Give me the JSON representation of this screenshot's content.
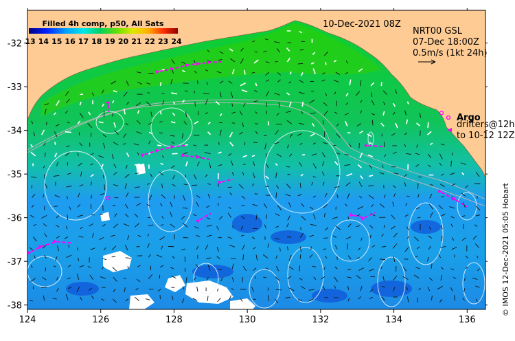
{
  "title": {
    "colorbar_label": "Filled 4h comp, p50, All Sats",
    "date": "10-Dec-2021 08Z"
  },
  "colorbar": {
    "ticks": [
      "13",
      "14",
      "15",
      "16",
      "17",
      "18",
      "19",
      "20",
      "21",
      "22",
      "23",
      "24"
    ],
    "colors": [
      "#000080",
      "#0000c8",
      "#0040ff",
      "#0090ff",
      "#00d0ff",
      "#00e8b0",
      "#00d040",
      "#50e000",
      "#c0e800",
      "#ffd000",
      "#ff7000",
      "#e00000",
      "#900000"
    ]
  },
  "info": {
    "line1": "NRT00 GSL",
    "line2": "07-Dec 18:00Z",
    "line3": "0.5m/s (1kt 24h)"
  },
  "legend": {
    "argo": "Argo",
    "drifters1": "drifters@12h",
    "drifters2": "to 10-12 12Z"
  },
  "credit": "© IMOS 12-Dec-2021 05:05 Hobart",
  "chart_data": {
    "type": "heatmap",
    "x_ticks": [
      "124",
      "126",
      "128",
      "130",
      "132",
      "134",
      "136"
    ],
    "y_ticks": [
      "-32",
      "-33",
      "-34",
      "-35",
      "-36",
      "-37",
      "-38"
    ],
    "xlim": [
      124,
      136.5
    ],
    "ylim": [
      -38.1,
      -31.25
    ],
    "land_color": "#fdcb93",
    "drifter_tracks": [
      [
        [
          127.6,
          -32.65
        ],
        [
          128.0,
          -32.58
        ],
        [
          128.4,
          -32.5
        ],
        [
          128.7,
          -32.47
        ],
        [
          129.0,
          -32.44
        ],
        [
          129.3,
          -32.43
        ]
      ],
      [
        [
          127.2,
          -34.55
        ],
        [
          127.6,
          -34.45
        ],
        [
          128.0,
          -34.37
        ],
        [
          128.3,
          -34.35
        ]
      ],
      [
        [
          128.3,
          -34.58
        ],
        [
          128.7,
          -34.62
        ],
        [
          129.0,
          -34.67
        ]
      ],
      [
        [
          124.1,
          -36.78
        ],
        [
          124.4,
          -36.65
        ],
        [
          124.8,
          -36.55
        ],
        [
          125.2,
          -36.58
        ]
      ],
      [
        [
          128.7,
          -36.05
        ],
        [
          129.0,
          -35.9
        ]
      ],
      [
        [
          129.3,
          -35.18
        ],
        [
          129.6,
          -35.12
        ]
      ],
      [
        [
          132.9,
          -35.95
        ],
        [
          133.2,
          -36.0
        ],
        [
          133.5,
          -35.88
        ]
      ],
      [
        [
          133.3,
          -34.35
        ],
        [
          133.7,
          -34.37
        ]
      ],
      [
        [
          135.3,
          -35.42
        ],
        [
          135.7,
          -35.6
        ],
        [
          136.0,
          -35.75
        ]
      ],
      [
        [
          126.2,
          -33.42
        ],
        [
          126.22,
          -33.58
        ]
      ]
    ],
    "argo_floats": [
      [
        126.2,
        -35.55
      ],
      [
        135.3,
        -33.6
      ]
    ]
  }
}
